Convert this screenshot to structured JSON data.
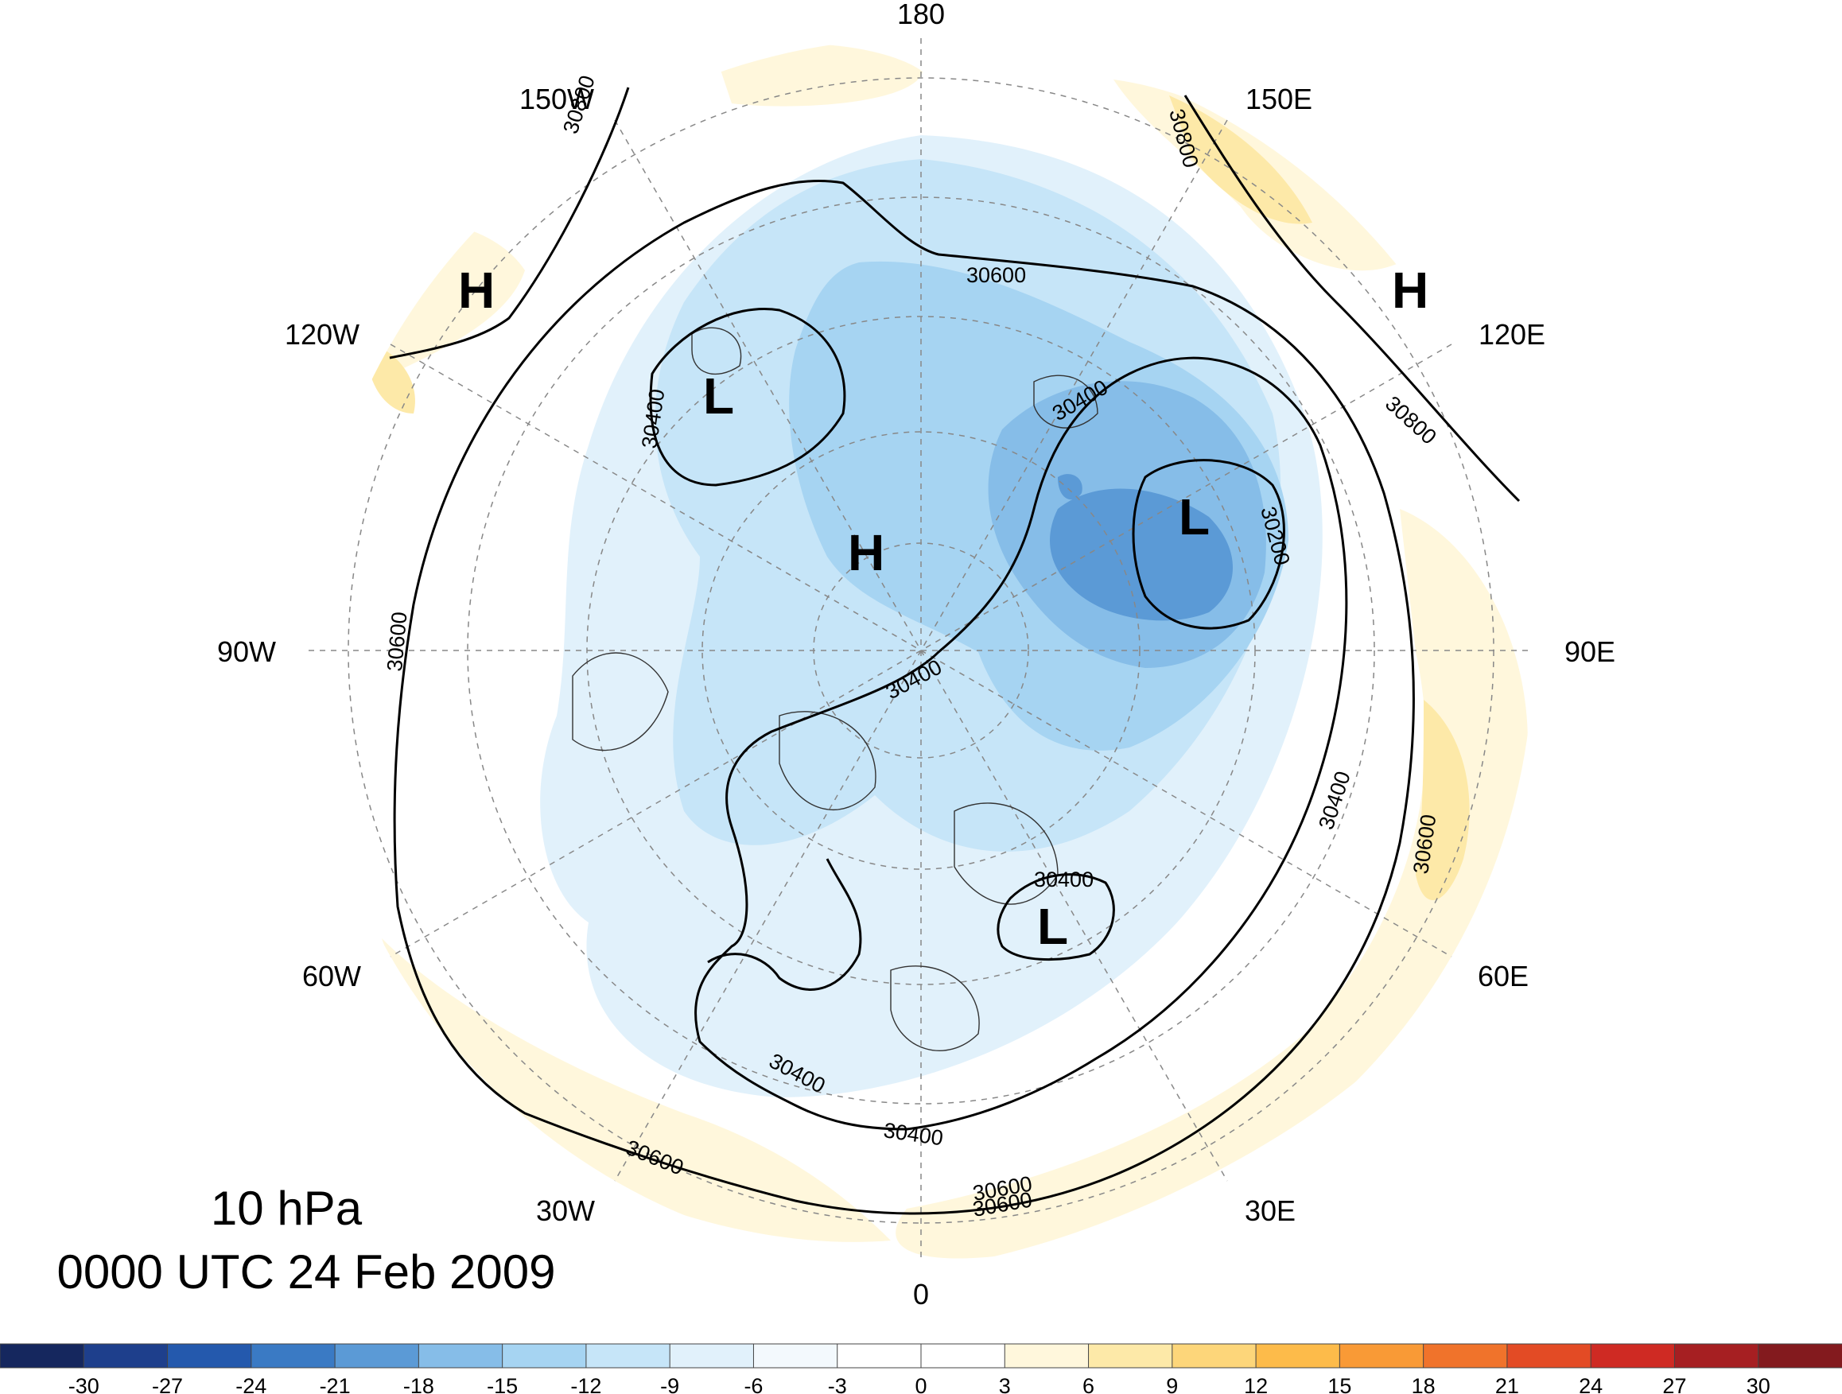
{
  "title": {
    "level": "10 hPa",
    "datetime": "0000 UTC 24 Feb 2009"
  },
  "longitude_labels": [
    {
      "text": "180",
      "lon": 180
    },
    {
      "text": "150E",
      "lon": 150
    },
    {
      "text": "120E",
      "lon": 120
    },
    {
      "text": "90E",
      "lon": 90
    },
    {
      "text": "60E",
      "lon": 60
    },
    {
      "text": "30E",
      "lon": 30
    },
    {
      "text": "0",
      "lon": 0
    },
    {
      "text": "30W",
      "lon": -30
    },
    {
      "text": "60W",
      "lon": -60
    },
    {
      "text": "90W",
      "lon": -90
    },
    {
      "text": "120W",
      "lon": -120
    },
    {
      "text": "150W",
      "lon": -150
    }
  ],
  "contour_labels": [
    "30800",
    "30800",
    "30800",
    "30600",
    "30600",
    "30600",
    "30600",
    "30600",
    "30600",
    "30400",
    "30400",
    "30400",
    "30400",
    "30400",
    "30400",
    "30400",
    "30200"
  ],
  "pressure_centers": [
    "H",
    "H",
    "H",
    "L",
    "L",
    "L"
  ],
  "colorbar": {
    "ticks": [
      "-30",
      "-27",
      "-24",
      "-21",
      "-18",
      "-15",
      "-12",
      "-9",
      "-6",
      "-3",
      "0",
      "3",
      "6",
      "9",
      "12",
      "15",
      "18",
      "21",
      "24",
      "27",
      "30"
    ],
    "colors": [
      "#15275e",
      "#1e3f8c",
      "#2459ad",
      "#3a7ac4",
      "#5b9ad6",
      "#86bde8",
      "#a6d4f2",
      "#c6e5f8",
      "#e1f1fb",
      "#f3f9fd",
      "#ffffff",
      "#ffffff",
      "#fff7dc",
      "#fde9a8",
      "#fdd67a",
      "#fdbb4a",
      "#f99a36",
      "#f0732b",
      "#e34b25",
      "#cf2a23",
      "#a61f22",
      "#831a1e"
    ]
  },
  "colors": {
    "cold_strong": "#5b9ad6",
    "cold_medium": "#86bde8",
    "cold_light": "#c6e5f8",
    "cold_faint": "#e1f1fb",
    "warm_faint": "#fff7dc",
    "warm_light": "#fde9a8"
  }
}
